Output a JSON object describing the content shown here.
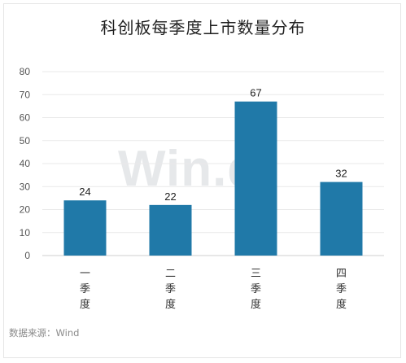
{
  "chart_data": {
    "type": "bar",
    "title": "科创板每季度上市数量分布",
    "categories": [
      "一季度",
      "二季度",
      "三季度",
      "四季度"
    ],
    "values": [
      24,
      22,
      67,
      32
    ],
    "yticks": [
      "0",
      "10",
      "20",
      "30",
      "40",
      "50",
      "60",
      "70",
      "80"
    ],
    "ylim": [
      0,
      80
    ],
    "grid": true,
    "bar_color": "#2079a8",
    "source": "数据来源：Wind",
    "watermark": "Win.d"
  }
}
